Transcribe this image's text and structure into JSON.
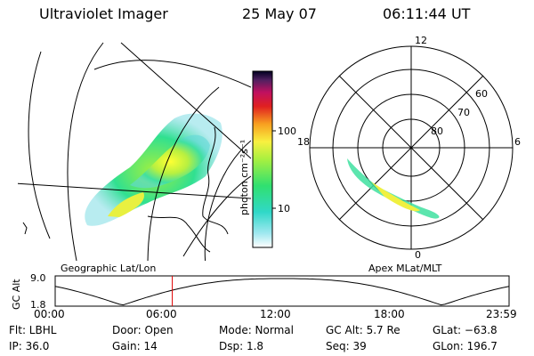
{
  "header": {
    "instrument": "Ultraviolet Imager",
    "date": "25 May 07",
    "time": "06:11:44 UT"
  },
  "colorbar": {
    "unit_label": "photon cm⁻²s⁻¹",
    "ticks": [
      "100",
      "10"
    ]
  },
  "polar": {
    "mlt_labels": {
      "top": "12",
      "left": "18",
      "right": "6",
      "bottom": "0"
    },
    "lat_labels": [
      "60",
      "70",
      "80"
    ]
  },
  "panel_titles": {
    "left": "Geographic Lat/Lon",
    "right": "Apex MLat/MLT"
  },
  "altitude_plot": {
    "ylabel": "GC Alt",
    "yticks": [
      "9.0",
      "1.8"
    ],
    "xticks": [
      "00:00",
      "06:00",
      "12:00",
      "18:00",
      "23:59"
    ],
    "current_time_fraction": 0.258
  },
  "status": {
    "filter": "Flt: LBHL",
    "ip": "IP: 36.0",
    "door": "Door: Open",
    "gain": "Gain: 14",
    "mode": "Mode:  Normal",
    "dsp": "Dsp:     1.8",
    "gc_alt": "GC Alt: 5.7 Re",
    "seq": "Seq: 39",
    "glat": "GLat:  −63.8",
    "glon": "GLon: 196.7"
  },
  "colors": {
    "cursor": "#e00000",
    "ink": "#000000"
  }
}
